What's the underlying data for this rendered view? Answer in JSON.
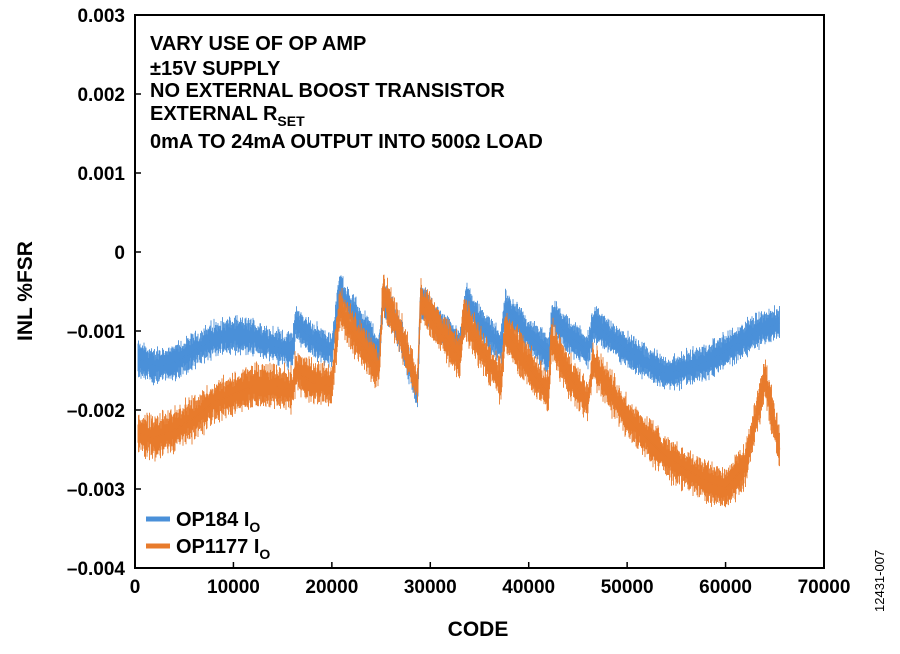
{
  "chart_data": {
    "type": "line",
    "xlabel": "CODE",
    "ylabel": "INL %FSR",
    "xlim": [
      0,
      70000
    ],
    "ylim": [
      -0.004,
      0.003
    ],
    "x_ticks": [
      "0",
      "10000",
      "20000",
      "30000",
      "40000",
      "50000",
      "60000",
      "70000"
    ],
    "y_ticks": [
      "0.003",
      "0.002",
      "0.001",
      "0",
      "–0.001",
      "–0.002",
      "–0.003",
      "–0.004"
    ],
    "grid": false,
    "legend_position": "bottom-left",
    "annotation_lines": [
      "VARY USE OF OP AMP",
      "±15V SUPPLY",
      "NO EXTERNAL BOOST TRANSISTOR",
      {
        "main": "EXTERNAL R",
        "sub": "SET"
      },
      "0mA TO 24mA OUTPUT INTO 500Ω LOAD"
    ],
    "figure_id": "12431-007",
    "series": [
      {
        "name": "OP184 I",
        "name_sub": "O",
        "color": "#4a90d9",
        "band_width": 0.00045,
        "x": [
          300,
          2000,
          4000,
          6000,
          8000,
          10000,
          12000,
          14000,
          16000,
          16300,
          18000,
          20000,
          20800,
          22000,
          24000,
          24800,
          25200,
          27000,
          28700,
          29000,
          31000,
          33000,
          33700,
          35000,
          37200,
          37600,
          40000,
          42000,
          42400,
          44000,
          46000,
          46600,
          50000,
          54000,
          58000,
          60000,
          62000,
          64000,
          65500
        ],
        "y": [
          -0.00135,
          -0.00145,
          -0.0014,
          -0.00125,
          -0.0011,
          -0.00105,
          -0.00108,
          -0.00118,
          -0.00125,
          -0.0009,
          -0.0011,
          -0.00125,
          -0.00045,
          -0.00075,
          -0.0011,
          -0.0013,
          -0.0006,
          -0.00105,
          -0.0018,
          -0.0006,
          -0.00095,
          -0.0012,
          -0.0006,
          -0.0009,
          -0.0012,
          -0.0007,
          -0.00105,
          -0.0013,
          -0.0008,
          -0.00105,
          -0.00125,
          -0.0009,
          -0.00125,
          -0.00155,
          -0.0014,
          -0.00125,
          -0.0011,
          -0.00095,
          -0.0009
        ]
      },
      {
        "name": "OP1177 I",
        "name_sub": "O",
        "color": "#e87b2c",
        "band_width": 0.00055,
        "x": [
          300,
          2000,
          4000,
          6000,
          8000,
          10000,
          12000,
          14000,
          16000,
          16300,
          18000,
          20000,
          20800,
          22000,
          24000,
          24800,
          25200,
          27000,
          28700,
          29000,
          31000,
          33000,
          33400,
          35000,
          37200,
          37600,
          40000,
          42000,
          42300,
          44000,
          46000,
          46500,
          50000,
          54000,
          58000,
          60000,
          62000,
          64000,
          65500
        ],
        "y": [
          -0.0023,
          -0.00235,
          -0.00225,
          -0.0021,
          -0.0019,
          -0.0018,
          -0.0017,
          -0.0017,
          -0.00175,
          -0.0015,
          -0.00165,
          -0.0017,
          -0.0007,
          -0.001,
          -0.00135,
          -0.0015,
          -0.0005,
          -0.00105,
          -0.0017,
          -0.0006,
          -0.001,
          -0.00135,
          -0.0008,
          -0.0012,
          -0.00165,
          -0.001,
          -0.00145,
          -0.0018,
          -0.0011,
          -0.00155,
          -0.0019,
          -0.0014,
          -0.0021,
          -0.0026,
          -0.0029,
          -0.003,
          -0.0027,
          -0.0016,
          -0.0025
        ]
      }
    ]
  }
}
